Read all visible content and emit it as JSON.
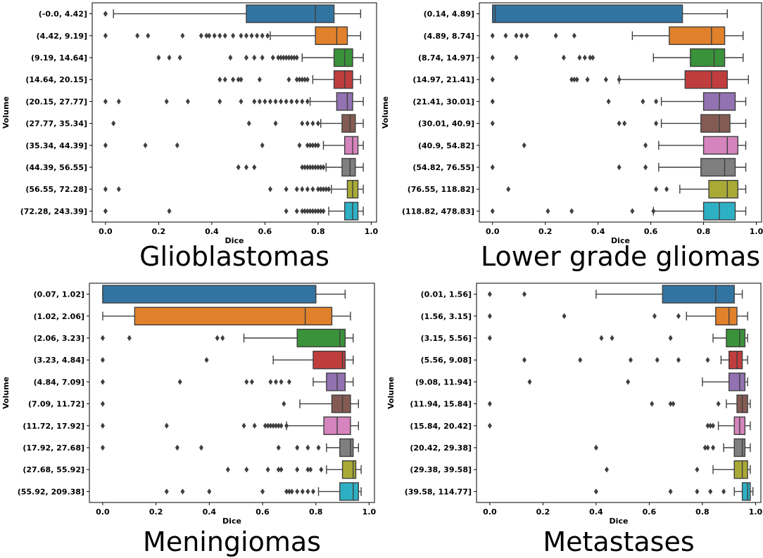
{
  "chart_data": [
    {
      "type": "boxplot",
      "title": "Glioblastomas",
      "xlabel": "Dice",
      "ylabel": "Volume",
      "xlim": [
        -0.05,
        1.02
      ],
      "xticks": [
        "0.0",
        "0.2",
        "0.4",
        "0.6",
        "0.8",
        "1.0"
      ],
      "categories": [
        "(-0.0, 4.42]",
        "(4.42, 9.19]",
        "(9.19, 14.64]",
        "(14.64, 20.15]",
        "(20.15, 27.77]",
        "(27.77, 35.34]",
        "(35.34, 44.39]",
        "(44.39, 56.55]",
        "(56.55, 72.28]",
        "(72.28, 243.39]"
      ],
      "boxes": [
        {
          "whislo": 0.03,
          "q1": 0.53,
          "med": 0.79,
          "q3": 0.86,
          "whishi": 0.96,
          "fliers": [
            0.0,
            0.0
          ]
        },
        {
          "whislo": 0.62,
          "q1": 0.79,
          "med": 0.87,
          "q3": 0.91,
          "whishi": 0.96,
          "fliers": [
            0.0,
            0.12,
            0.16,
            0.29,
            0.36,
            0.38,
            0.39,
            0.41,
            0.43,
            0.45,
            0.48,
            0.51,
            0.53,
            0.55,
            0.57,
            0.59,
            0.61
          ]
        },
        {
          "whislo": 0.74,
          "q1": 0.86,
          "med": 0.9,
          "q3": 0.93,
          "whishi": 0.97,
          "fliers": [
            0.2,
            0.24,
            0.28,
            0.47,
            0.53,
            0.56,
            0.59,
            0.63,
            0.65,
            0.66,
            0.67,
            0.68,
            0.69,
            0.7,
            0.71,
            0.72
          ]
        },
        {
          "whislo": 0.78,
          "q1": 0.86,
          "med": 0.9,
          "q3": 0.93,
          "whishi": 0.96,
          "fliers": [
            0.43,
            0.45,
            0.48,
            0.5,
            0.51,
            0.58,
            0.69,
            0.72,
            0.73,
            0.74,
            0.75,
            0.76
          ]
        },
        {
          "whislo": 0.77,
          "q1": 0.87,
          "med": 0.91,
          "q3": 0.93,
          "whishi": 0.97,
          "fliers": [
            0.0,
            0.05,
            0.23,
            0.31,
            0.43,
            0.51,
            0.56,
            0.58,
            0.6,
            0.62,
            0.64,
            0.66,
            0.68,
            0.7,
            0.72,
            0.74,
            0.76
          ]
        },
        {
          "whislo": 0.81,
          "q1": 0.89,
          "med": 0.92,
          "q3": 0.94,
          "whishi": 0.97,
          "fliers": [
            0.03,
            0.54,
            0.64,
            0.74,
            0.76,
            0.78,
            0.8
          ]
        },
        {
          "whislo": 0.82,
          "q1": 0.9,
          "med": 0.93,
          "q3": 0.95,
          "whishi": 0.97,
          "fliers": [
            0.0,
            0.15,
            0.27,
            0.59,
            0.73,
            0.76,
            0.77,
            0.78,
            0.79,
            0.8
          ]
        },
        {
          "whislo": 0.83,
          "q1": 0.89,
          "med": 0.92,
          "q3": 0.94,
          "whishi": 0.97,
          "fliers": [
            0.5,
            0.53,
            0.56,
            0.74,
            0.75,
            0.76,
            0.77,
            0.78,
            0.79,
            0.8,
            0.81,
            0.82
          ]
        },
        {
          "whislo": 0.85,
          "q1": 0.91,
          "med": 0.93,
          "q3": 0.95,
          "whishi": 0.97,
          "fliers": [
            0.0,
            0.05,
            0.62,
            0.68,
            0.72,
            0.74,
            0.76,
            0.78,
            0.8,
            0.81,
            0.82,
            0.83,
            0.84
          ]
        },
        {
          "whislo": 0.84,
          "q1": 0.9,
          "med": 0.93,
          "q3": 0.95,
          "whishi": 0.97,
          "fliers": [
            0.0,
            0.24,
            0.68,
            0.72,
            0.74,
            0.75,
            0.76,
            0.77,
            0.78,
            0.79,
            0.8,
            0.81,
            0.82
          ]
        }
      ]
    },
    {
      "type": "boxplot",
      "title": "Lower grade gliomas",
      "xlabel": "Dice",
      "ylabel": "Volume",
      "xlim": [
        -0.05,
        1.02
      ],
      "xticks": [
        "0.0",
        "0.2",
        "0.4",
        "0.6",
        "0.8",
        "1.0"
      ],
      "categories": [
        "(0.14, 4.89]",
        "(4.89, 8.74]",
        "(8.74, 14.97]",
        "(14.97, 21.41]",
        "(21.41, 30.01]",
        "(30.01, 40.9]",
        "(40.9, 54.82]",
        "(54.82, 76.55]",
        "(76.55, 118.82]",
        "(118.82, 478.83]"
      ],
      "boxes": [
        {
          "whislo": 0.0,
          "q1": 0.0,
          "med": 0.01,
          "q3": 0.72,
          "whishi": 0.89,
          "fliers": []
        },
        {
          "whislo": 0.53,
          "q1": 0.67,
          "med": 0.83,
          "q3": 0.88,
          "whishi": 0.95,
          "fliers": [
            0.0,
            0.05,
            0.09,
            0.11,
            0.13,
            0.24,
            0.31
          ]
        },
        {
          "whislo": 0.61,
          "q1": 0.75,
          "med": 0.84,
          "q3": 0.88,
          "whishi": 0.95,
          "fliers": [
            0.0,
            0.09,
            0.27,
            0.33,
            0.35,
            0.37,
            0.38
          ]
        },
        {
          "whislo": 0.48,
          "q1": 0.73,
          "med": 0.83,
          "q3": 0.89,
          "whishi": 0.97,
          "fliers": [
            0.0,
            0.3,
            0.31,
            0.32,
            0.36,
            0.43,
            0.48
          ]
        },
        {
          "whislo": 0.64,
          "q1": 0.8,
          "med": 0.86,
          "q3": 0.92,
          "whishi": 0.96,
          "fliers": [
            0.0,
            0.44,
            0.57,
            0.62
          ]
        },
        {
          "whislo": 0.64,
          "q1": 0.79,
          "med": 0.86,
          "q3": 0.9,
          "whishi": 0.96,
          "fliers": [
            0.0,
            0.48,
            0.5,
            0.62
          ]
        },
        {
          "whislo": 0.63,
          "q1": 0.8,
          "med": 0.89,
          "q3": 0.93,
          "whishi": 0.96,
          "fliers": [
            0.12,
            0.58
          ]
        },
        {
          "whislo": 0.63,
          "q1": 0.79,
          "med": 0.88,
          "q3": 0.92,
          "whishi": 0.96,
          "fliers": [
            0.0,
            0.48,
            0.58
          ]
        },
        {
          "whislo": 0.71,
          "q1": 0.82,
          "med": 0.89,
          "q3": 0.93,
          "whishi": 0.96,
          "fliers": [
            0.06,
            0.62,
            0.66
          ]
        },
        {
          "whislo": 0.61,
          "q1": 0.8,
          "med": 0.86,
          "q3": 0.92,
          "whishi": 0.96,
          "fliers": [
            0.0,
            0.21,
            0.3,
            0.53,
            0.61
          ]
        }
      ]
    },
    {
      "type": "boxplot",
      "title": "Meningiomas",
      "xlabel": "Dice",
      "ylabel": "Volume",
      "xlim": [
        -0.05,
        1.02
      ],
      "xticks": [
        "0.0",
        "0.2",
        "0.4",
        "0.6",
        "0.8",
        "1.0"
      ],
      "categories": [
        "(0.07, 1.02]",
        "(1.02, 2.06]",
        "(2.06, 3.23]",
        "(3.23, 4.84]",
        "(4.84, 7.09]",
        "(7.09, 11.72]",
        "(11.72, 17.92]",
        "(17.92, 27.68]",
        "(27.68, 55.92]",
        "(55.92, 209.38]"
      ],
      "boxes": [
        {
          "whislo": 0.0,
          "q1": 0.0,
          "med": 0.8,
          "q3": 0.8,
          "whishi": 0.91,
          "fliers": []
        },
        {
          "whislo": 0.0,
          "q1": 0.12,
          "med": 0.76,
          "q3": 0.86,
          "whishi": 0.93,
          "fliers": []
        },
        {
          "whislo": 0.53,
          "q1": 0.73,
          "med": 0.89,
          "q3": 0.91,
          "whishi": 0.94,
          "fliers": [
            0.0,
            0.1,
            0.43,
            0.45
          ]
        },
        {
          "whislo": 0.64,
          "q1": 0.79,
          "med": 0.9,
          "q3": 0.91,
          "whishi": 0.94,
          "fliers": [
            0.0,
            0.39
          ]
        },
        {
          "whislo": 0.79,
          "q1": 0.84,
          "med": 0.88,
          "q3": 0.91,
          "whishi": 0.94,
          "fliers": [
            0.0,
            0.29,
            0.54,
            0.56,
            0.63,
            0.65,
            0.67,
            0.7
          ]
        },
        {
          "whislo": 0.74,
          "q1": 0.86,
          "med": 0.9,
          "q3": 0.93,
          "whishi": 0.96,
          "fliers": [
            0.0,
            0.68
          ]
        },
        {
          "whislo": 0.69,
          "q1": 0.83,
          "med": 0.88,
          "q3": 0.93,
          "whishi": 0.96,
          "fliers": [
            0.0,
            0.24,
            0.53,
            0.57,
            0.61,
            0.62,
            0.63,
            0.64,
            0.65,
            0.66,
            0.67,
            0.69
          ]
        },
        {
          "whislo": 0.84,
          "q1": 0.89,
          "med": 0.93,
          "q3": 0.94,
          "whishi": 0.96,
          "fliers": [
            0.0,
            0.28,
            0.37,
            0.66,
            0.73,
            0.77,
            0.81
          ]
        },
        {
          "whislo": 0.84,
          "q1": 0.9,
          "med": 0.94,
          "q3": 0.95,
          "whishi": 0.97,
          "fliers": [
            0.47,
            0.54,
            0.62,
            0.66,
            0.67,
            0.73,
            0.77,
            0.78,
            0.82
          ]
        },
        {
          "whislo": 0.81,
          "q1": 0.89,
          "med": 0.94,
          "q3": 0.96,
          "whishi": 0.97,
          "fliers": [
            0.24,
            0.3,
            0.4,
            0.6,
            0.69,
            0.7,
            0.71,
            0.73,
            0.75,
            0.77,
            0.79
          ]
        }
      ]
    },
    {
      "type": "boxplot",
      "title": "Metastases",
      "xlabel": "Dice",
      "ylabel": "Volume",
      "xlim": [
        -0.05,
        1.02
      ],
      "xticks": [
        "0.0",
        "0.2",
        "0.4",
        "0.6",
        "0.8",
        "1.0"
      ],
      "categories": [
        "(0.01, 1.56]",
        "(1.56, 3.15]",
        "(3.15, 5.56]",
        "(5.56, 9.08]",
        "(9.08, 11.94]",
        "(11.94, 15.84]",
        "(15.84, 20.42]",
        "(20.42, 29.38]",
        "(29.38, 39.58]",
        "(39.58, 114.77]"
      ],
      "boxes": [
        {
          "whislo": 0.4,
          "q1": 0.65,
          "med": 0.85,
          "q3": 0.92,
          "whishi": 0.95,
          "fliers": [
            0.0,
            0.13
          ]
        },
        {
          "whislo": 0.74,
          "q1": 0.85,
          "med": 0.9,
          "q3": 0.93,
          "whishi": 0.97,
          "fliers": [
            0.0,
            0.28,
            0.62,
            0.71
          ]
        },
        {
          "whislo": 0.84,
          "q1": 0.89,
          "med": 0.94,
          "q3": 0.96,
          "whishi": 0.97,
          "fliers": [
            0.0,
            0.42,
            0.46,
            0.68
          ]
        },
        {
          "whislo": 0.87,
          "q1": 0.9,
          "med": 0.93,
          "q3": 0.95,
          "whishi": 0.97,
          "fliers": [
            0.13,
            0.34,
            0.53,
            0.63,
            0.71,
            0.82
          ]
        },
        {
          "whislo": 0.8,
          "q1": 0.9,
          "med": 0.94,
          "q3": 0.96,
          "whishi": 0.97,
          "fliers": [
            0.15,
            0.52
          ]
        },
        {
          "whislo": 0.89,
          "q1": 0.93,
          "med": 0.95,
          "q3": 0.97,
          "whishi": 0.98,
          "fliers": [
            0.0,
            0.61,
            0.68,
            0.69,
            0.86
          ]
        },
        {
          "whislo": 0.86,
          "q1": 0.92,
          "med": 0.94,
          "q3": 0.96,
          "whishi": 0.98,
          "fliers": [
            0.0,
            0.82,
            0.83,
            0.84
          ]
        },
        {
          "whislo": 0.88,
          "q1": 0.92,
          "med": 0.95,
          "q3": 0.96,
          "whishi": 0.98,
          "fliers": [
            0.4,
            0.81,
            0.82,
            0.84
          ]
        },
        {
          "whislo": 0.84,
          "q1": 0.92,
          "med": 0.95,
          "q3": 0.97,
          "whishi": 0.98,
          "fliers": [
            0.44,
            0.78
          ]
        },
        {
          "whislo": 0.92,
          "q1": 0.95,
          "med": 0.97,
          "q3": 0.98,
          "whishi": 0.99,
          "fliers": [
            0.4,
            0.68,
            0.78,
            0.83,
            0.88
          ]
        }
      ]
    }
  ],
  "colors": [
    "#3274a1",
    "#e1812c",
    "#3a923a",
    "#c03d3e",
    "#9372b2",
    "#845b53",
    "#d684bd",
    "#7f7f7f",
    "#a9aa35",
    "#2eb0c4"
  ],
  "edge_color": "#3f3f3f"
}
